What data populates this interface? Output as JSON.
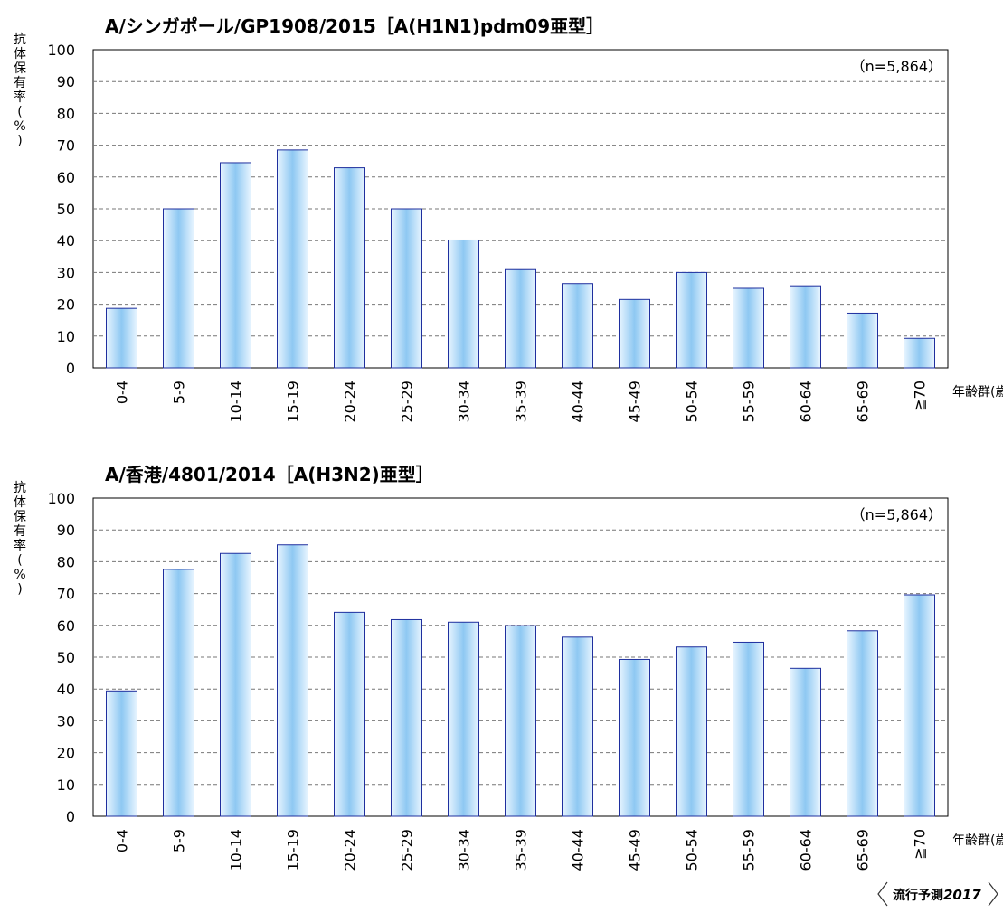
{
  "chart_data": [
    {
      "type": "bar",
      "title": "A/シンガポール/GP1908/2015［A(H1N1)pdm09亜型］",
      "ylabel": "抗体保有率(%)",
      "xlabel": "年齢群(歳)",
      "annotation": "（n=5,864）",
      "ylim": [
        0,
        100
      ],
      "yticks": [
        0,
        10,
        20,
        30,
        40,
        50,
        60,
        70,
        80,
        90,
        100
      ],
      "grid": true,
      "categories": [
        "0-4",
        "5-9",
        "10-14",
        "15-19",
        "20-24",
        "25-29",
        "30-34",
        "35-39",
        "40-44",
        "45-49",
        "50-54",
        "55-59",
        "60-64",
        "65-69",
        "≧70"
      ],
      "values": [
        18.7,
        50.0,
        64.5,
        68.5,
        62.9,
        50.0,
        40.2,
        30.9,
        26.5,
        21.5,
        30.0,
        25.0,
        25.8,
        17.2,
        9.3
      ]
    },
    {
      "type": "bar",
      "title": "A/香港/4801/2014［A(H3N2)亜型］",
      "ylabel": "抗体保有率(%)",
      "xlabel": "年齢群(歳)",
      "annotation": "（n=5,864）",
      "ylim": [
        0,
        100
      ],
      "yticks": [
        0,
        10,
        20,
        30,
        40,
        50,
        60,
        70,
        80,
        90,
        100
      ],
      "grid": true,
      "categories": [
        "0-4",
        "5-9",
        "10-14",
        "15-19",
        "20-24",
        "25-29",
        "30-34",
        "35-39",
        "40-44",
        "45-49",
        "50-54",
        "55-59",
        "60-64",
        "65-69",
        "≧70"
      ],
      "values": [
        39.4,
        77.6,
        82.6,
        85.3,
        64.1,
        61.8,
        61.0,
        59.9,
        56.3,
        49.3,
        53.2,
        54.7,
        46.5,
        58.3,
        69.6
      ]
    }
  ],
  "footer": {
    "badge_label": "流行予測",
    "badge_year": "2017"
  },
  "colors": {
    "bar_stroke": "#1f2f9e",
    "bar_fill_light": "#e8f5ff",
    "bar_fill_dark": "#8ec8f2",
    "grid": "#777777"
  }
}
